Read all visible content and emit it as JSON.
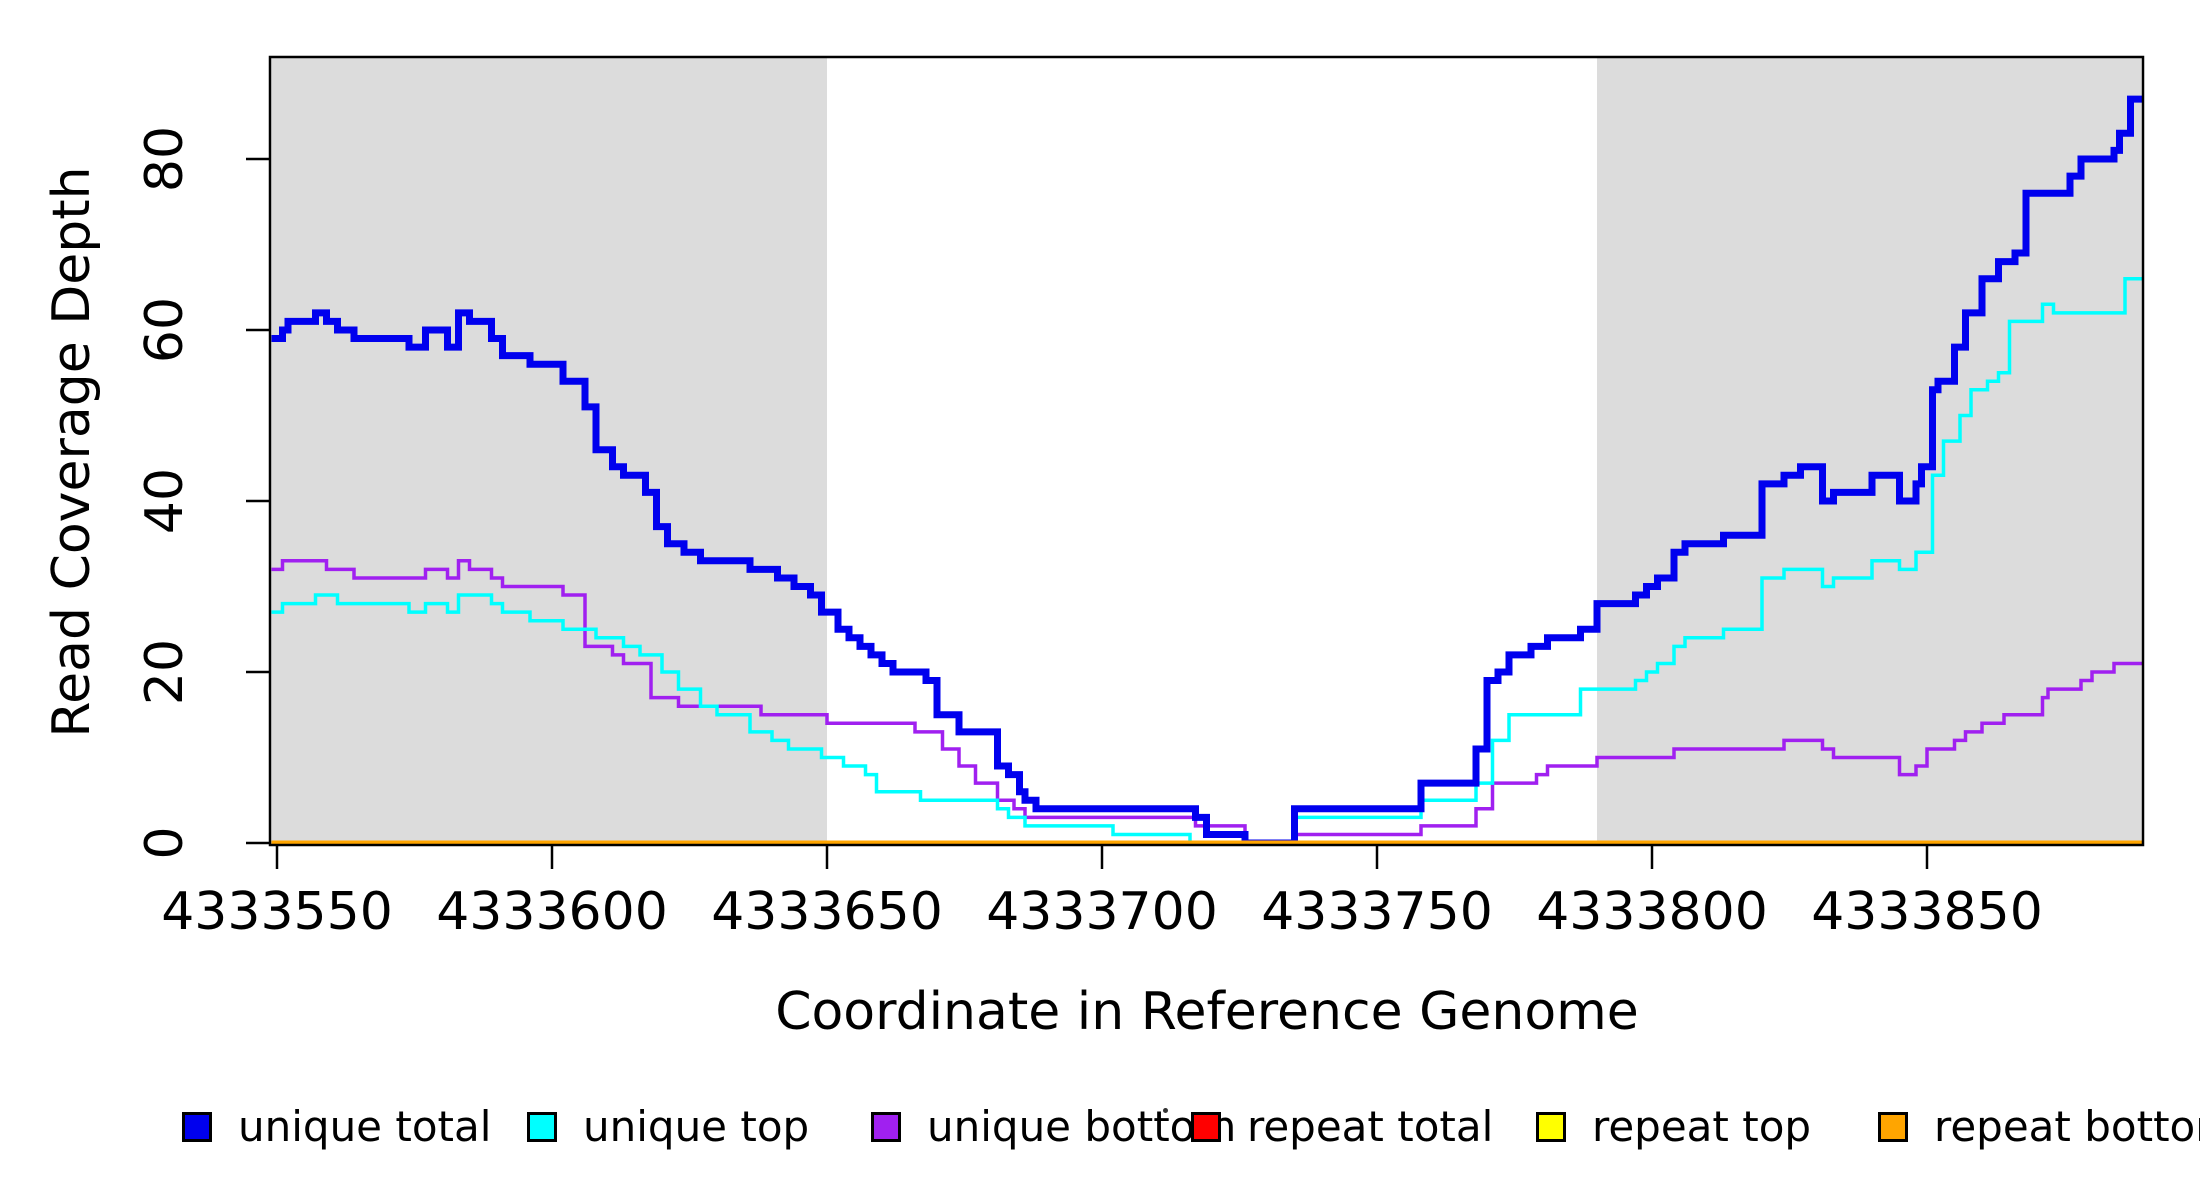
{
  "chart_data": {
    "type": "line",
    "subtype": "step",
    "title": "",
    "xlabel": "Coordinate in Reference Genome",
    "ylabel": "Read Coverage Depth",
    "xlim": [
      4333549,
      4333889
    ],
    "ylim": [
      0,
      92
    ],
    "grid": false,
    "x_ticks": [
      {
        "value": 4333550,
        "label": "4333550"
      },
      {
        "value": 4333600,
        "label": "4333600"
      },
      {
        "value": 4333650,
        "label": "4333650"
      },
      {
        "value": 4333700,
        "label": "4333700"
      },
      {
        "value": 4333750,
        "label": "4333750"
      },
      {
        "value": 4333800,
        "label": "4333800"
      },
      {
        "value": 4333850,
        "label": "4333850"
      }
    ],
    "y_ticks": [
      {
        "value": 0,
        "label": "0"
      },
      {
        "value": 20,
        "label": "20"
      },
      {
        "value": 40,
        "label": "40"
      },
      {
        "value": 60,
        "label": "60"
      },
      {
        "value": 80,
        "label": "80"
      }
    ],
    "shaded_regions": [
      {
        "x0": 4333549,
        "x1": 4333650,
        "color": "#DCDCDC"
      },
      {
        "x0": 4333790,
        "x1": 4333889,
        "color": "#DCDCDC"
      }
    ],
    "series": [
      {
        "name": "repeat total",
        "color": "#FF0000",
        "width": 3,
        "points": [
          [
            4333549,
            0
          ]
        ]
      },
      {
        "name": "repeat top",
        "color": "#FFFF00",
        "width": 3,
        "points": [
          [
            4333549,
            0
          ]
        ]
      },
      {
        "name": "unique bottom",
        "color": "#A020F0",
        "width": 3.5,
        "points": [
          [
            4333549,
            32
          ],
          [
            4333551,
            33
          ],
          [
            4333559,
            32
          ],
          [
            4333564,
            31
          ],
          [
            4333577,
            32
          ],
          [
            4333581,
            31
          ],
          [
            4333583,
            33
          ],
          [
            4333585,
            32
          ],
          [
            4333589,
            31
          ],
          [
            4333591,
            30
          ],
          [
            4333602,
            29
          ],
          [
            4333606,
            23
          ],
          [
            4333611,
            22
          ],
          [
            4333613,
            21
          ],
          [
            4333618,
            17
          ],
          [
            4333623,
            16
          ],
          [
            4333638,
            15
          ],
          [
            4333650,
            14
          ],
          [
            4333666,
            13
          ],
          [
            4333671,
            11
          ],
          [
            4333674,
            9
          ],
          [
            4333677,
            7
          ],
          [
            4333681,
            5
          ],
          [
            4333684,
            4
          ],
          [
            4333686,
            3
          ],
          [
            4333717,
            2
          ],
          [
            4333726,
            0
          ],
          [
            4333735,
            1
          ],
          [
            4333758,
            2
          ],
          [
            4333768,
            4
          ],
          [
            4333771,
            7
          ],
          [
            4333779,
            8
          ],
          [
            4333781,
            9
          ],
          [
            4333790,
            10
          ],
          [
            4333804,
            11
          ],
          [
            4333824,
            12
          ],
          [
            4333831,
            11
          ],
          [
            4333833,
            10
          ],
          [
            4333845,
            8
          ],
          [
            4333848,
            9
          ],
          [
            4333850,
            11
          ],
          [
            4333855,
            12
          ],
          [
            4333857,
            13
          ],
          [
            4333860,
            14
          ],
          [
            4333864,
            15
          ],
          [
            4333871,
            17
          ],
          [
            4333872,
            18
          ],
          [
            4333878,
            19
          ],
          [
            4333880,
            20
          ],
          [
            4333884,
            21
          ]
        ]
      },
      {
        "name": "unique top",
        "color": "#00FFFF",
        "width": 3.5,
        "points": [
          [
            4333549,
            27
          ],
          [
            4333551,
            28
          ],
          [
            4333557,
            29
          ],
          [
            4333561,
            28
          ],
          [
            4333574,
            27
          ],
          [
            4333577,
            28
          ],
          [
            4333581,
            27
          ],
          [
            4333583,
            29
          ],
          [
            4333589,
            28
          ],
          [
            4333591,
            27
          ],
          [
            4333596,
            26
          ],
          [
            4333602,
            25
          ],
          [
            4333608,
            24
          ],
          [
            4333613,
            23
          ],
          [
            4333616,
            22
          ],
          [
            4333620,
            20
          ],
          [
            4333623,
            18
          ],
          [
            4333627,
            16
          ],
          [
            4333630,
            15
          ],
          [
            4333636,
            13
          ],
          [
            4333640,
            12
          ],
          [
            4333643,
            11
          ],
          [
            4333649,
            10
          ],
          [
            4333653,
            9
          ],
          [
            4333657,
            8
          ],
          [
            4333659,
            6
          ],
          [
            4333667,
            5
          ],
          [
            4333681,
            4
          ],
          [
            4333683,
            3
          ],
          [
            4333686,
            2
          ],
          [
            4333702,
            1
          ],
          [
            4333716,
            0
          ],
          [
            4333735,
            3
          ],
          [
            4333758,
            5
          ],
          [
            4333768,
            7
          ],
          [
            4333771,
            12
          ],
          [
            4333774,
            15
          ],
          [
            4333787,
            18
          ],
          [
            4333797,
            19
          ],
          [
            4333799,
            20
          ],
          [
            4333801,
            21
          ],
          [
            4333804,
            23
          ],
          [
            4333806,
            24
          ],
          [
            4333813,
            25
          ],
          [
            4333820,
            31
          ],
          [
            4333824,
            32
          ],
          [
            4333831,
            30
          ],
          [
            4333833,
            31
          ],
          [
            4333840,
            33
          ],
          [
            4333845,
            32
          ],
          [
            4333848,
            34
          ],
          [
            4333851,
            43
          ],
          [
            4333853,
            47
          ],
          [
            4333856,
            50
          ],
          [
            4333858,
            53
          ],
          [
            4333861,
            54
          ],
          [
            4333863,
            55
          ],
          [
            4333865,
            61
          ],
          [
            4333871,
            63
          ],
          [
            4333873,
            62
          ],
          [
            4333886,
            66
          ]
        ]
      },
      {
        "name": "unique total",
        "color": "#0000EE",
        "width": 7,
        "points": [
          [
            4333549,
            59
          ],
          [
            4333551,
            60
          ],
          [
            4333552,
            61
          ],
          [
            4333557,
            62
          ],
          [
            4333559,
            61
          ],
          [
            4333561,
            60
          ],
          [
            4333564,
            59
          ],
          [
            4333574,
            58
          ],
          [
            4333577,
            60
          ],
          [
            4333581,
            58
          ],
          [
            4333583,
            62
          ],
          [
            4333585,
            61
          ],
          [
            4333589,
            59
          ],
          [
            4333591,
            57
          ],
          [
            4333596,
            56
          ],
          [
            4333602,
            54
          ],
          [
            4333606,
            51
          ],
          [
            4333608,
            46
          ],
          [
            4333611,
            44
          ],
          [
            4333613,
            43
          ],
          [
            4333617,
            41
          ],
          [
            4333619,
            37
          ],
          [
            4333621,
            35
          ],
          [
            4333624,
            34
          ],
          [
            4333627,
            33
          ],
          [
            4333636,
            32
          ],
          [
            4333641,
            31
          ],
          [
            4333644,
            30
          ],
          [
            4333647,
            29
          ],
          [
            4333649,
            27
          ],
          [
            4333652,
            25
          ],
          [
            4333654,
            24
          ],
          [
            4333656,
            23
          ],
          [
            4333658,
            22
          ],
          [
            4333660,
            21
          ],
          [
            4333662,
            20
          ],
          [
            4333668,
            19
          ],
          [
            4333670,
            15
          ],
          [
            4333674,
            13
          ],
          [
            4333681,
            9
          ],
          [
            4333683,
            8
          ],
          [
            4333685,
            6
          ],
          [
            4333686,
            5
          ],
          [
            4333688,
            4
          ],
          [
            4333717,
            3
          ],
          [
            4333719,
            1
          ],
          [
            4333726,
            0
          ],
          [
            4333735,
            4
          ],
          [
            4333758,
            7
          ],
          [
            4333768,
            11
          ],
          [
            4333770,
            19
          ],
          [
            4333772,
            20
          ],
          [
            4333774,
            22
          ],
          [
            4333778,
            23
          ],
          [
            4333781,
            24
          ],
          [
            4333787,
            25
          ],
          [
            4333790,
            28
          ],
          [
            4333797,
            29
          ],
          [
            4333799,
            30
          ],
          [
            4333801,
            31
          ],
          [
            4333804,
            34
          ],
          [
            4333806,
            35
          ],
          [
            4333813,
            36
          ],
          [
            4333820,
            42
          ],
          [
            4333824,
            43
          ],
          [
            4333827,
            44
          ],
          [
            4333831,
            40
          ],
          [
            4333833,
            41
          ],
          [
            4333840,
            43
          ],
          [
            4333845,
            40
          ],
          [
            4333848,
            42
          ],
          [
            4333849,
            44
          ],
          [
            4333851,
            53
          ],
          [
            4333852,
            54
          ],
          [
            4333855,
            58
          ],
          [
            4333857,
            62
          ],
          [
            4333860,
            66
          ],
          [
            4333863,
            68
          ],
          [
            4333866,
            69
          ],
          [
            4333868,
            76
          ],
          [
            4333876,
            78
          ],
          [
            4333878,
            80
          ],
          [
            4333884,
            81
          ],
          [
            4333885,
            83
          ],
          [
            4333887,
            87
          ]
        ]
      },
      {
        "name": "repeat bottom",
        "color": "#FFA500",
        "width": 5,
        "points": [
          [
            4333549,
            0
          ]
        ]
      }
    ],
    "legend": {
      "position": "bottom",
      "entries": [
        {
          "label": "unique total",
          "color": "#0000EE"
        },
        {
          "label": "unique top",
          "color": "#00FFFF"
        },
        {
          "label": "unique bottom",
          "color": "#A020F0"
        },
        {
          "label": "repeat total",
          "color": "#FF0000"
        },
        {
          "label": "repeat top",
          "color": "#FFFF00"
        },
        {
          "label": "repeat bottom",
          "color": "#FFA500"
        }
      ],
      "separator_dot": "·"
    }
  },
  "colors": {
    "background": "#FFFFFF",
    "shaded_band": "#DCDCDC",
    "axis": "#000000"
  }
}
